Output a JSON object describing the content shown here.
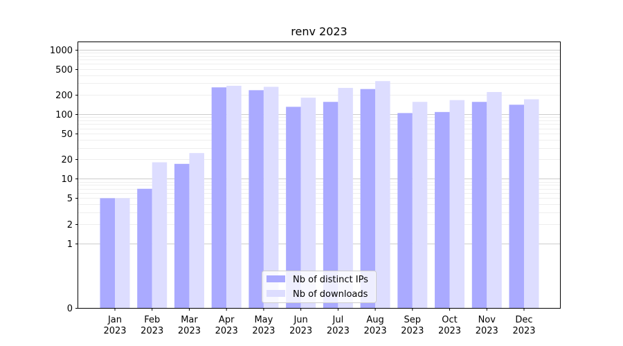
{
  "chart_data": {
    "type": "bar",
    "title": "renv 2023",
    "xlabel": "",
    "ylabel": "",
    "yscale": "symlog",
    "ylim": [
      0,
      1300
    ],
    "yticks": [
      0,
      1,
      2,
      5,
      10,
      20,
      50,
      100,
      200,
      500,
      1000
    ],
    "ytick_labels": [
      "0",
      "1",
      "2",
      "5",
      "10",
      "20",
      "50",
      "100",
      "200",
      "500",
      "1000"
    ],
    "grid": true,
    "legend_position": "bottom-center",
    "categories": [
      [
        "Jan",
        "2023"
      ],
      [
        "Feb",
        "2023"
      ],
      [
        "Mar",
        "2023"
      ],
      [
        "Apr",
        "2023"
      ],
      [
        "May",
        "2023"
      ],
      [
        "Jun",
        "2023"
      ],
      [
        "Jul",
        "2023"
      ],
      [
        "Aug",
        "2023"
      ],
      [
        "Sep",
        "2023"
      ],
      [
        "Oct",
        "2023"
      ],
      [
        "Nov",
        "2023"
      ],
      [
        "Dec",
        "2023"
      ]
    ],
    "series": [
      {
        "name": "Nb of distinct IPs",
        "color": "#aaaaff",
        "values": [
          5,
          7,
          17,
          260,
          235,
          130,
          155,
          245,
          104,
          108,
          155,
          140
        ]
      },
      {
        "name": "Nb of downloads",
        "color": "#ddddff",
        "values": [
          5,
          18,
          25,
          275,
          265,
          180,
          255,
          325,
          155,
          165,
          220,
          170
        ]
      }
    ]
  }
}
